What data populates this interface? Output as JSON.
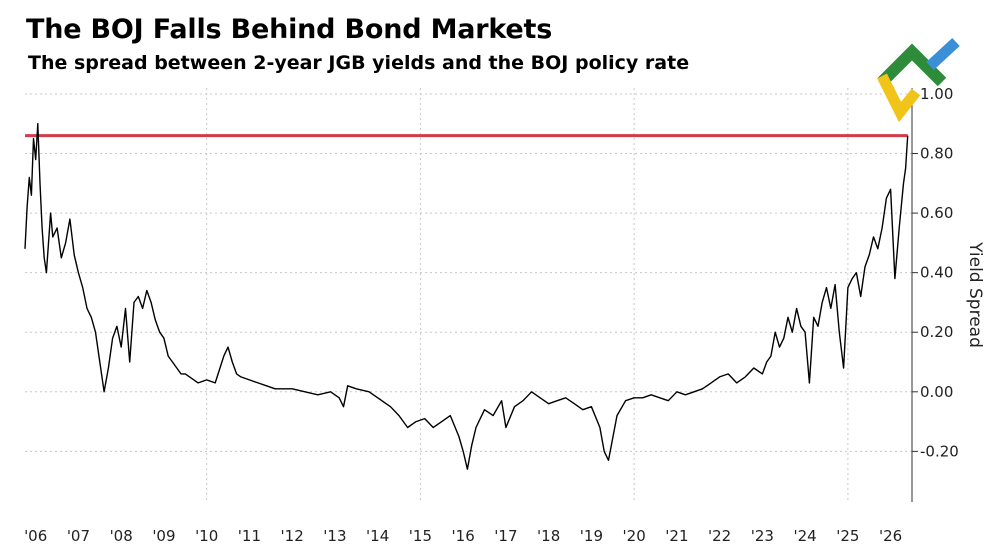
{
  "title": "The BOJ Falls Behind Bond Markets",
  "subtitle": "The spread between 2-year JGB yields and the BOJ policy rate",
  "logo": {
    "icon": "litefinance-logo-icon",
    "colors": [
      "#2e8b3a",
      "#f0c419",
      "#3b8fd8"
    ]
  },
  "chart_data": {
    "type": "line",
    "title": "The BOJ Falls Behind Bond Markets",
    "subtitle": "The spread between 2-year JGB yields and the BOJ policy rate",
    "xlabel": "",
    "ylabel": "Yield Spread",
    "xlim": [
      2005.75,
      2026.5
    ],
    "ylim": [
      -0.37,
      1.02
    ],
    "y_ticks": [
      {
        "value": 1.0,
        "label": "1.00"
      },
      {
        "value": 0.8,
        "label": "0.80"
      },
      {
        "value": 0.6,
        "label": "0.60"
      },
      {
        "value": 0.4,
        "label": "0.40"
      },
      {
        "value": 0.2,
        "label": "0.20"
      },
      {
        "value": 0.0,
        "label": "0.00"
      },
      {
        "value": -0.2,
        "label": "-0.20"
      }
    ],
    "x_ticks": [
      {
        "value": 2006,
        "label": "'06"
      },
      {
        "value": 2007,
        "label": "'07"
      },
      {
        "value": 2008,
        "label": "'08"
      },
      {
        "value": 2009,
        "label": "'09"
      },
      {
        "value": 2010,
        "label": "'10"
      },
      {
        "value": 2011,
        "label": "'11"
      },
      {
        "value": 2012,
        "label": "'12"
      },
      {
        "value": 2013,
        "label": "'13"
      },
      {
        "value": 2014,
        "label": "'14"
      },
      {
        "value": 2015,
        "label": "'15"
      },
      {
        "value": 2016,
        "label": "'16"
      },
      {
        "value": 2017,
        "label": "'17"
      },
      {
        "value": 2018,
        "label": "'18"
      },
      {
        "value": 2019,
        "label": "'19"
      },
      {
        "value": 2020,
        "label": "'20"
      },
      {
        "value": 2021,
        "label": "'21"
      },
      {
        "value": 2022,
        "label": "'22"
      },
      {
        "value": 2023,
        "label": "'23"
      },
      {
        "value": 2024,
        "label": "'24"
      },
      {
        "value": 2025,
        "label": "'25"
      },
      {
        "value": 2026,
        "label": "'26"
      }
    ],
    "grid": true,
    "vertical_grid_at": [
      2010,
      2015,
      2020,
      2025
    ],
    "reference_line": {
      "value": 0.86,
      "color": "#d23b4a"
    },
    "series_color": "#000000",
    "series": [
      {
        "x": [
          2005.75,
          2005.8,
          2005.85,
          2005.9,
          2005.95,
          2006.0,
          2006.05,
          2006.1,
          2006.15,
          2006.2,
          2006.25,
          2006.3,
          2006.35,
          2006.4,
          2006.5,
          2006.6,
          2006.7,
          2006.8,
          2006.9,
          2007.0,
          2007.1,
          2007.2,
          2007.3,
          2007.4,
          2007.5,
          2007.6,
          2007.7,
          2007.8,
          2007.9,
          2008.0,
          2008.1,
          2008.2,
          2008.3,
          2008.4,
          2008.5,
          2008.6,
          2008.7,
          2008.8,
          2008.9,
          2009.0,
          2009.1,
          2009.2,
          2009.3,
          2009.4,
          2009.5,
          2009.6,
          2009.7,
          2009.8,
          2010.0,
          2010.2,
          2010.4,
          2010.5,
          2010.6,
          2010.7,
          2010.8,
          2011.0,
          2011.2,
          2011.4,
          2011.6,
          2011.8,
          2012.0,
          2012.3,
          2012.6,
          2012.9,
          2013.1,
          2013.2,
          2013.3,
          2013.5,
          2013.8,
          2014.0,
          2014.3,
          2014.5,
          2014.7,
          2014.9,
          2015.1,
          2015.3,
          2015.5,
          2015.7,
          2015.9,
          2016.0,
          2016.1,
          2016.2,
          2016.3,
          2016.5,
          2016.7,
          2016.9,
          2017.0,
          2017.2,
          2017.4,
          2017.6,
          2017.8,
          2018.0,
          2018.2,
          2018.4,
          2018.6,
          2018.8,
          2019.0,
          2019.2,
          2019.3,
          2019.4,
          2019.6,
          2019.8,
          2020.0,
          2020.2,
          2020.4,
          2020.6,
          2020.8,
          2021.0,
          2021.2,
          2021.4,
          2021.6,
          2021.8,
          2022.0,
          2022.2,
          2022.4,
          2022.6,
          2022.8,
          2023.0,
          2023.1,
          2023.2,
          2023.3,
          2023.4,
          2023.5,
          2023.6,
          2023.7,
          2023.8,
          2023.9,
          2024.0,
          2024.1,
          2024.2,
          2024.3,
          2024.4,
          2024.5,
          2024.6,
          2024.7,
          2024.8,
          2024.9,
          2025.0,
          2025.1,
          2025.2,
          2025.3,
          2025.4,
          2025.5,
          2025.6,
          2025.7,
          2025.8,
          2025.9,
          2026.0,
          2026.1,
          2026.2,
          2026.3,
          2026.35,
          2026.4
        ],
        "y": [
          0.48,
          0.62,
          0.72,
          0.66,
          0.85,
          0.78,
          0.9,
          0.7,
          0.55,
          0.45,
          0.4,
          0.5,
          0.6,
          0.52,
          0.55,
          0.45,
          0.5,
          0.58,
          0.46,
          0.4,
          0.35,
          0.28,
          0.25,
          0.2,
          0.1,
          0.0,
          0.08,
          0.18,
          0.22,
          0.15,
          0.28,
          0.1,
          0.3,
          0.32,
          0.28,
          0.34,
          0.3,
          0.24,
          0.2,
          0.18,
          0.12,
          0.1,
          0.08,
          0.06,
          0.06,
          0.05,
          0.04,
          0.03,
          0.04,
          0.03,
          0.12,
          0.15,
          0.1,
          0.06,
          0.05,
          0.04,
          0.03,
          0.02,
          0.01,
          0.01,
          0.01,
          0.0,
          -0.01,
          0.0,
          -0.02,
          -0.05,
          0.02,
          0.01,
          0.0,
          -0.02,
          -0.05,
          -0.08,
          -0.12,
          -0.1,
          -0.09,
          -0.12,
          -0.1,
          -0.08,
          -0.15,
          -0.2,
          -0.26,
          -0.18,
          -0.12,
          -0.06,
          -0.08,
          -0.03,
          -0.12,
          -0.05,
          -0.03,
          0.0,
          -0.02,
          -0.04,
          -0.03,
          -0.02,
          -0.04,
          -0.06,
          -0.05,
          -0.12,
          -0.2,
          -0.23,
          -0.08,
          -0.03,
          -0.02,
          -0.02,
          -0.01,
          -0.02,
          -0.03,
          0.0,
          -0.01,
          0.0,
          0.01,
          0.03,
          0.05,
          0.06,
          0.03,
          0.05,
          0.08,
          0.06,
          0.1,
          0.12,
          0.2,
          0.15,
          0.18,
          0.25,
          0.2,
          0.28,
          0.22,
          0.2,
          0.03,
          0.25,
          0.22,
          0.3,
          0.35,
          0.28,
          0.36,
          0.2,
          0.08,
          0.35,
          0.38,
          0.4,
          0.32,
          0.42,
          0.46,
          0.52,
          0.48,
          0.55,
          0.65,
          0.68,
          0.38,
          0.55,
          0.7,
          0.75,
          0.86
        ]
      }
    ]
  }
}
